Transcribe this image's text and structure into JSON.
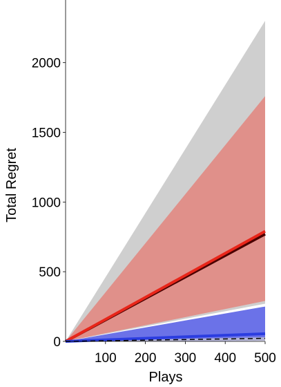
{
  "chart_data": {
    "type": "area",
    "xlabel": "Plays",
    "ylabel": "Total Regret",
    "xlim": [
      0,
      500
    ],
    "ylim": [
      0,
      2400
    ],
    "x_ticks": [
      100,
      200,
      300,
      400,
      500
    ],
    "y_ticks": [
      0,
      500,
      1000,
      1500,
      2000
    ],
    "grid": false,
    "legend": "none",
    "bands": [
      {
        "x": [
          0,
          500
        ],
        "lower": [
          0,
          270
        ],
        "upper": [
          0,
          2300
        ],
        "color": "#cfcfcf"
      },
      {
        "x": [
          0,
          500
        ],
        "lower": [
          0,
          290
        ],
        "upper": [
          0,
          1760
        ],
        "color": "#e0908a"
      },
      {
        "x": [
          0,
          500
        ],
        "lower": [
          0,
          5
        ],
        "upper": [
          0,
          250
        ],
        "color": "#6b72e8"
      },
      {
        "x": [
          0,
          500
        ],
        "lower": [
          0,
          5
        ],
        "upper": [
          0,
          30
        ],
        "color": "#b4b4d4"
      }
    ],
    "series": [
      {
        "x": [
          0,
          500
        ],
        "y": [
          0,
          770
        ],
        "color": "#4a0000",
        "style": "solid"
      },
      {
        "x": [
          0,
          500
        ],
        "y": [
          0,
          790
        ],
        "color": "#e8261a",
        "style": "solid"
      },
      {
        "x": [
          0,
          500
        ],
        "y": [
          0,
          55
        ],
        "color": "#2b3de0",
        "style": "solid"
      },
      {
        "x": [
          0,
          500
        ],
        "y": [
          0,
          22
        ],
        "color": "#000000",
        "style": "dashed"
      }
    ]
  }
}
